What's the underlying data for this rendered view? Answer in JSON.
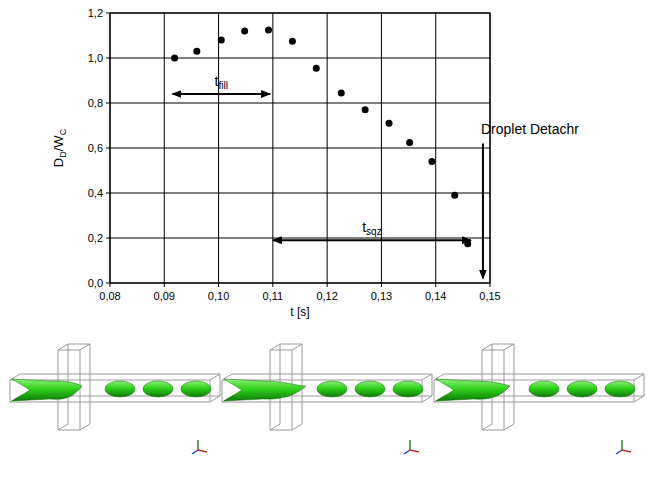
{
  "chart_data": {
    "type": "scatter",
    "xlabel": "t [s]",
    "ylabel": [
      {
        "text": "D",
        "sub": false
      },
      {
        "text": "D",
        "sub": true
      },
      {
        "text": "/W",
        "sub": false
      },
      {
        "text": "C",
        "sub": true
      }
    ],
    "x": [
      0.0919,
      0.096,
      0.1005,
      0.1048,
      0.1092,
      0.1136,
      0.118,
      0.1226,
      0.127,
      0.1314,
      0.1352,
      0.1393,
      0.1435,
      0.1459
    ],
    "values": [
      1.0,
      1.03,
      1.08,
      1.12,
      1.125,
      1.075,
      0.955,
      0.845,
      0.77,
      0.71,
      0.625,
      0.54,
      0.39,
      0.175
    ],
    "color": "#000000",
    "marker": "circle",
    "xlim": [
      0.08,
      0.15
    ],
    "ylim": [
      0,
      1.2
    ],
    "xticks": [
      {
        "value": 0.08,
        "label": "0,08"
      },
      {
        "value": 0.09,
        "label": "0,09"
      },
      {
        "value": 0.1,
        "label": "0,10"
      },
      {
        "value": 0.11,
        "label": "0,11"
      },
      {
        "value": 0.12,
        "label": "0,12"
      },
      {
        "value": 0.13,
        "label": "0,13"
      },
      {
        "value": 0.14,
        "label": "0,14"
      },
      {
        "value": 0.15,
        "label": "0,15"
      }
    ],
    "yticks": [
      {
        "value": 0,
        "label": "0,0"
      },
      {
        "value": 0.2,
        "label": "0,2"
      },
      {
        "value": 0.4,
        "label": "0,4"
      },
      {
        "value": 0.6,
        "label": "0,6"
      },
      {
        "value": 0.8,
        "label": "0,8"
      },
      {
        "value": 1.0,
        "label": "1,0"
      },
      {
        "value": 1.2,
        "label": "1,2"
      }
    ],
    "grid": true,
    "annotations": [
      {
        "text": "t",
        "subscript": "fill",
        "x": [
          0.0915,
          0.1095
        ],
        "y": 0.84
      },
      {
        "text": "t",
        "subscript": "sqz",
        "x": [
          0.11,
          0.1465
        ],
        "y": 0.19
      },
      {
        "text": "Droplet Detachr",
        "x": 0.1487,
        "y": [
          0.62,
          0.02
        ]
      }
    ]
  }
}
